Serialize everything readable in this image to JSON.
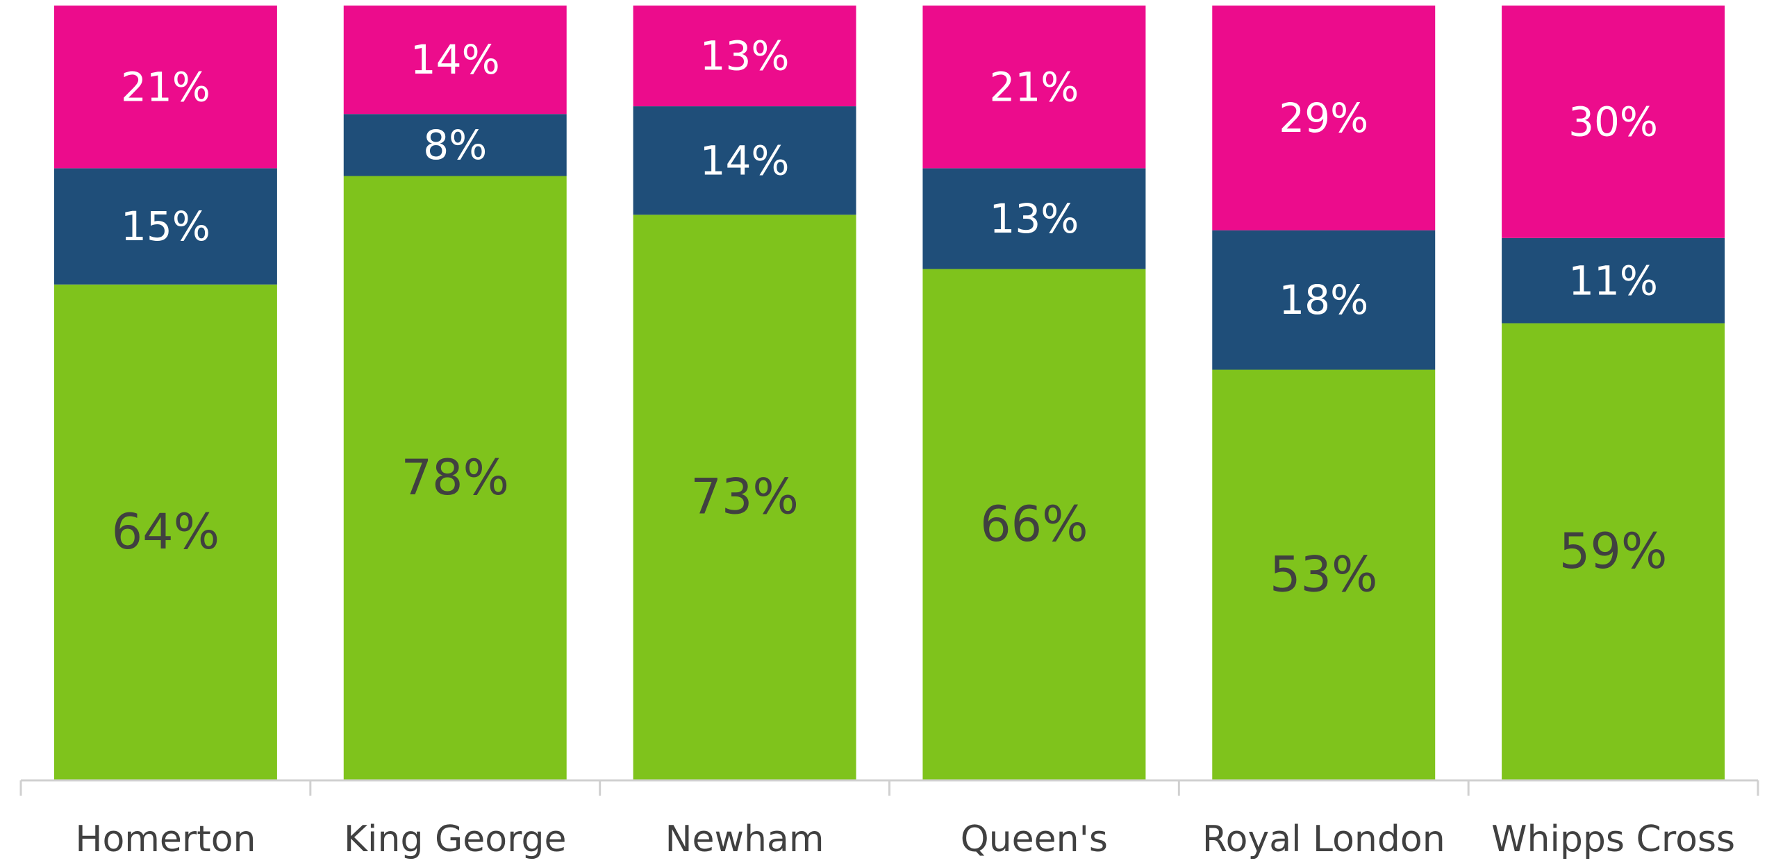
{
  "chart_data": {
    "type": "stacked_bar",
    "categories": [
      "Homerton",
      "King George",
      "Newham",
      "Queen's",
      "Royal London",
      "Whipps Cross"
    ],
    "series": [
      {
        "color": "#7fc31c",
        "label_color": "#404040",
        "values": [
          64,
          78,
          73,
          66,
          53,
          59
        ],
        "value_labels": [
          "64%",
          "78%",
          "73%",
          "66%",
          "53%",
          "59%"
        ]
      },
      {
        "color": "#1f4e79",
        "label_color": "#ffffff",
        "values": [
          15,
          8,
          14,
          13,
          18,
          11
        ],
        "value_labels": [
          "15%",
          "8%",
          "14%",
          "13%",
          "18%",
          "11%"
        ]
      },
      {
        "color": "#ec0c8c",
        "label_color": "#ffffff",
        "values": [
          21,
          14,
          13,
          21,
          29,
          30
        ],
        "value_labels": [
          "21%",
          "14%",
          "13%",
          "21%",
          "29%",
          "30%"
        ]
      }
    ],
    "ylim": [
      0,
      100
    ],
    "axis_color": "#d0d0d0"
  }
}
